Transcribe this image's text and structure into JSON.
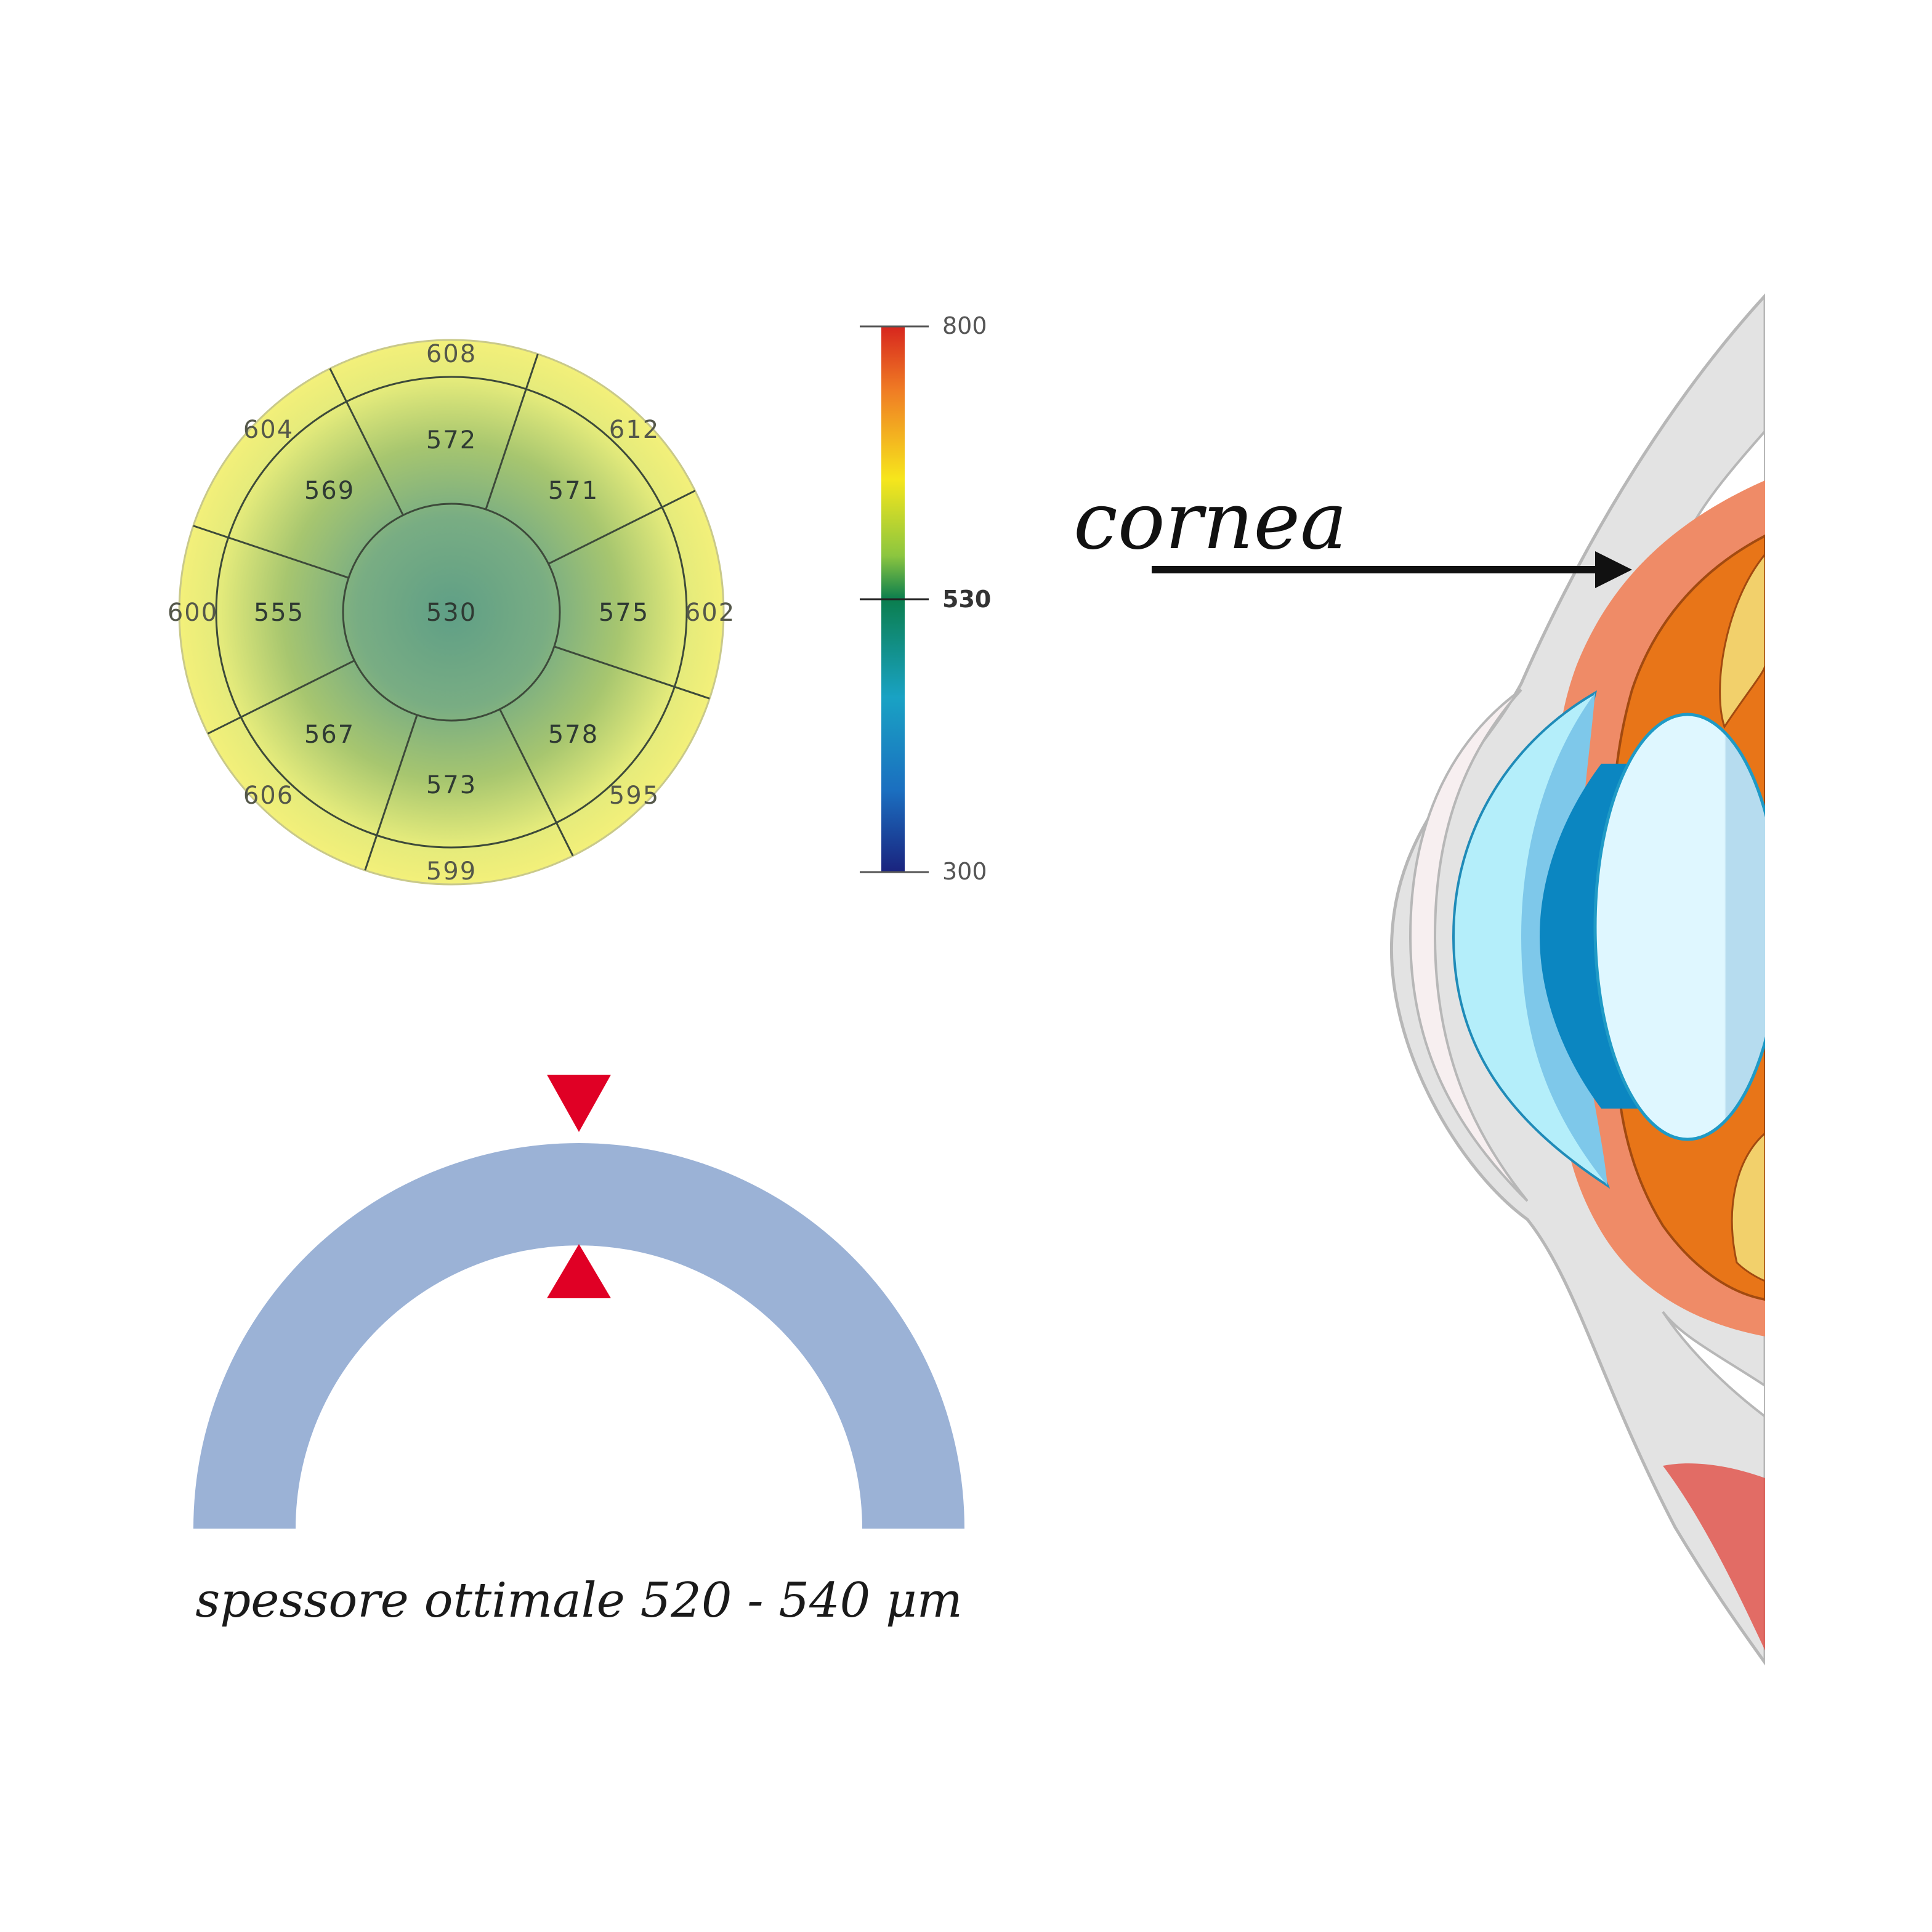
{
  "pachymetry_map": {
    "center": "530",
    "inner_ring": [
      "572",
      "571",
      "575",
      "578",
      "573",
      "567",
      "555",
      "569"
    ],
    "outer_ring": [
      "608",
      "612",
      "602",
      "595",
      "599",
      "606",
      "600",
      "604"
    ]
  },
  "color_scale": {
    "max": "800",
    "mid": "530",
    "min": "300",
    "colors": [
      "#d7261e",
      "#f07e24",
      "#f6e61c",
      "#8cc63f",
      "#0b7e4e",
      "#19a2c4",
      "#1b4fa0",
      "#1a237e"
    ]
  },
  "thickness_diagram": {
    "caption": "spessore ottimale 520 - 540 μm",
    "arc_color": "#9bb2d6",
    "marker_color": "#e00025"
  },
  "eye_illustration": {
    "label": "cornea"
  }
}
